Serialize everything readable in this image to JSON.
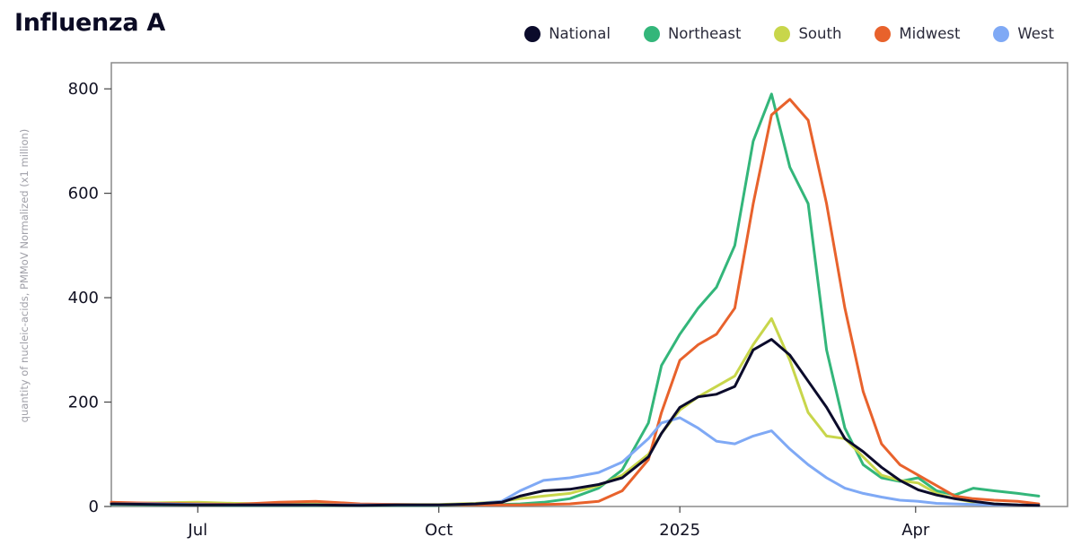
{
  "chart_data": {
    "type": "line",
    "title": "Influenza A",
    "xlabel": "",
    "ylabel": "quantity of nucleic-acids, PMMoV Normalized (x1 million)",
    "ylim": [
      0,
      850
    ],
    "x_ticks": [
      "Jul",
      "Oct",
      "2025",
      "Apr"
    ],
    "y_ticks": [
      0,
      200,
      400,
      600,
      800
    ],
    "grid": false,
    "legend_position": "top-right",
    "x": [
      "2024-05-29",
      "2024-06-15",
      "2024-07-01",
      "2024-07-15",
      "2024-08-01",
      "2024-08-15",
      "2024-09-01",
      "2024-09-15",
      "2024-10-01",
      "2024-10-15",
      "2024-10-25",
      "2024-11-01",
      "2024-11-10",
      "2024-11-20",
      "2024-12-01",
      "2024-12-10",
      "2024-12-20",
      "2024-12-25",
      "2025-01-01",
      "2025-01-08",
      "2025-01-15",
      "2025-01-22",
      "2025-01-29",
      "2025-02-05",
      "2025-02-12",
      "2025-02-19",
      "2025-02-26",
      "2025-03-05",
      "2025-03-12",
      "2025-03-19",
      "2025-03-26",
      "2025-04-02",
      "2025-04-09",
      "2025-04-16",
      "2025-04-23",
      "2025-05-01",
      "2025-05-10",
      "2025-05-18"
    ],
    "series": [
      {
        "name": "National",
        "color": "#0b0b2b",
        "values": [
          5,
          4,
          3,
          3,
          3,
          3,
          2,
          3,
          3,
          5,
          8,
          20,
          30,
          33,
          42,
          55,
          95,
          140,
          190,
          210,
          215,
          230,
          300,
          320,
          290,
          240,
          190,
          130,
          105,
          75,
          50,
          32,
          22,
          15,
          10,
          5,
          3,
          2
        ]
      },
      {
        "name": "Northeast",
        "color": "#33b67a",
        "values": [
          4,
          3,
          3,
          2,
          2,
          2,
          2,
          2,
          2,
          3,
          4,
          5,
          8,
          15,
          35,
          70,
          160,
          270,
          330,
          380,
          420,
          500,
          700,
          790,
          650,
          580,
          300,
          150,
          80,
          55,
          48,
          55,
          30,
          22,
          35,
          30,
          25,
          20
        ]
      },
      {
        "name": "South",
        "color": "#c8d64b",
        "values": [
          6,
          7,
          8,
          6,
          5,
          5,
          4,
          4,
          4,
          6,
          10,
          15,
          20,
          25,
          40,
          60,
          100,
          140,
          185,
          210,
          230,
          250,
          310,
          360,
          280,
          180,
          135,
          130,
          95,
          60,
          50,
          45,
          25,
          15,
          8,
          5,
          3,
          2
        ]
      },
      {
        "name": "Midwest",
        "color": "#e8622c",
        "values": [
          8,
          6,
          5,
          4,
          8,
          10,
          5,
          4,
          3,
          3,
          3,
          3,
          4,
          5,
          10,
          30,
          90,
          180,
          280,
          310,
          330,
          380,
          580,
          750,
          780,
          740,
          580,
          380,
          220,
          120,
          80,
          60,
          40,
          20,
          15,
          12,
          10,
          5
        ]
      },
      {
        "name": "West",
        "color": "#7fa9f5",
        "values": [
          5,
          5,
          4,
          3,
          3,
          3,
          3,
          3,
          3,
          5,
          10,
          30,
          50,
          55,
          65,
          85,
          130,
          160,
          170,
          150,
          125,
          120,
          135,
          145,
          110,
          80,
          55,
          35,
          25,
          18,
          12,
          10,
          6,
          5,
          4,
          3,
          3,
          2
        ]
      }
    ]
  }
}
